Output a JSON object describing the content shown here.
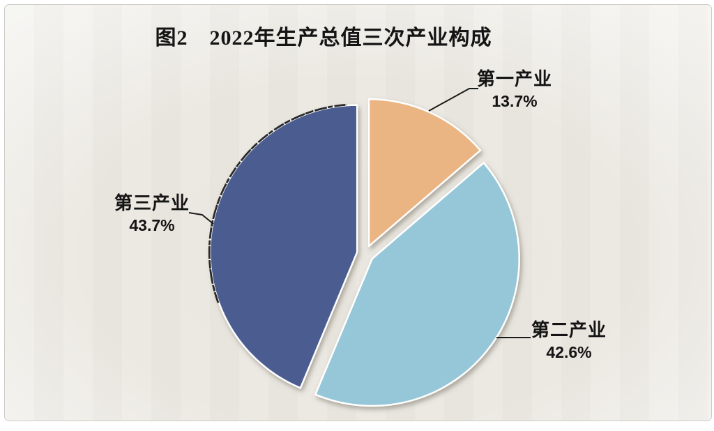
{
  "figure": {
    "title": "图2　2022年生产总值三次产业构成"
  },
  "chart_data": {
    "type": "pie",
    "title": "图2　2022年生产总值三次产业构成",
    "unit": "%",
    "start_angle_deg": 0,
    "direction": "clockwise",
    "exploded": true,
    "legend_position": "none",
    "data_labels": "outside-with-leader-lines",
    "slices": [
      {
        "label": "第一产业",
        "value": 13.7,
        "display": "13.7%",
        "color": "#EBB583"
      },
      {
        "label": "第二产业",
        "value": 42.6,
        "display": "42.6%",
        "color": "#95C7D8"
      },
      {
        "label": "第三产业",
        "value": 43.7,
        "display": "43.7%",
        "color": "#4C5B90"
      }
    ],
    "colors": {
      "background": "#EAE7E0",
      "frame_border": "#CFCCC6",
      "slice_border": "#FFFFFF",
      "text": "#141414"
    }
  }
}
